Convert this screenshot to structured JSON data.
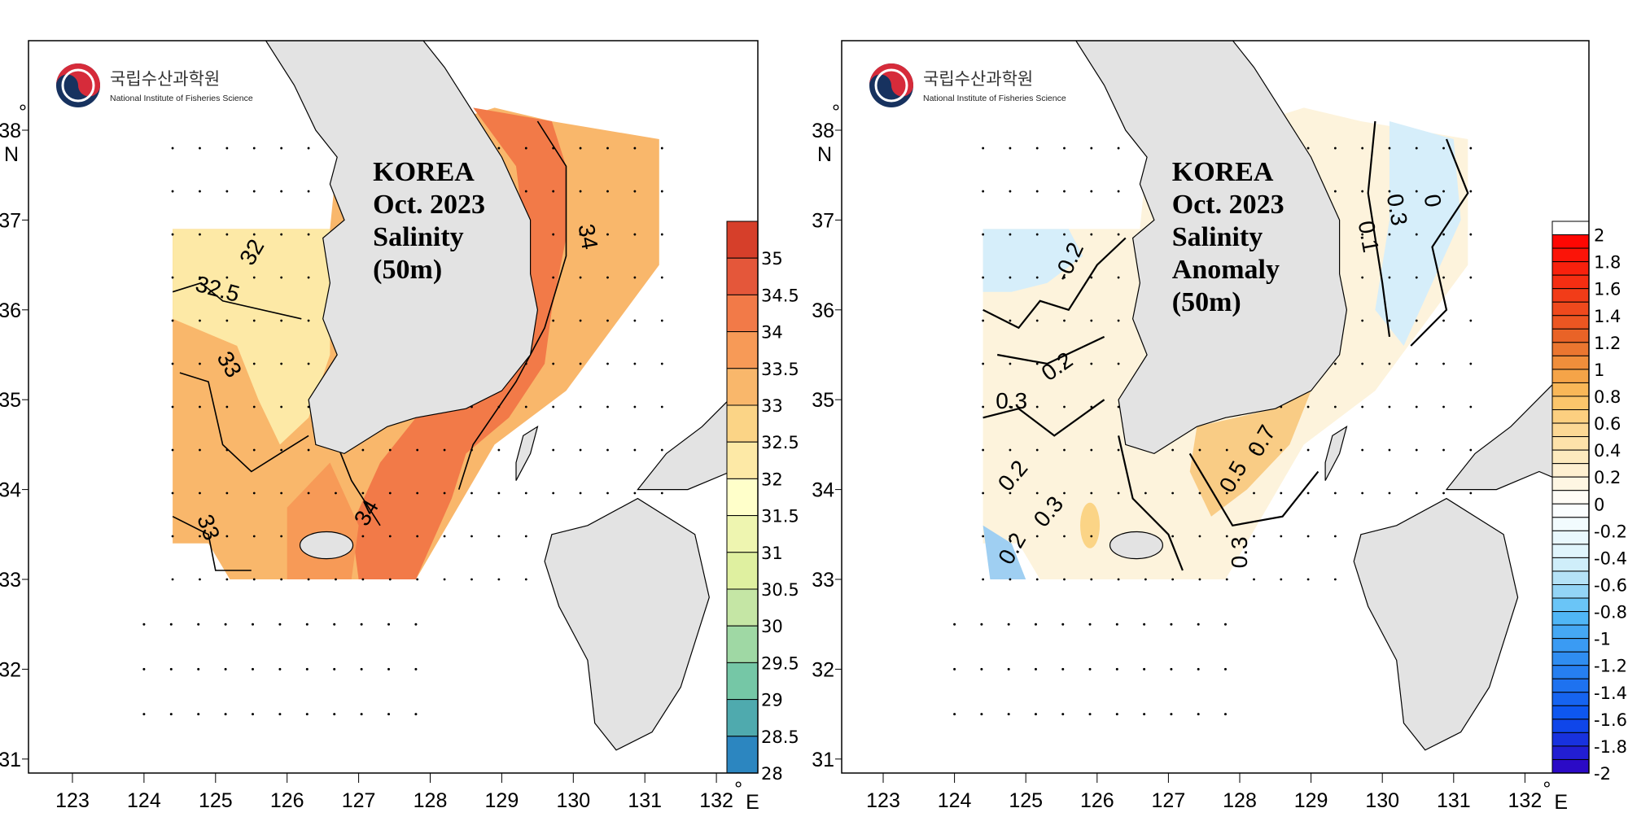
{
  "logo": {
    "korean": "국립수산과학원",
    "english": "National Institute of Fisheries Science"
  },
  "chart_data": [
    {
      "type": "heatmap",
      "subtype": "filled-contour map",
      "title_lines": [
        "KOREA",
        "Oct. 2023",
        "Salinity",
        "(50m)"
      ],
      "x_ticks": [
        "123",
        "124",
        "125",
        "126",
        "127",
        "128",
        "129",
        "130",
        "131",
        "132"
      ],
      "x_unit": "°",
      "x_axis_label": "E",
      "y_ticks": [
        "38",
        "37",
        "36",
        "35",
        "34",
        "33",
        "32",
        "31"
      ],
      "y_unit": "°",
      "y_axis_label": "N",
      "xlim": [
        122.4,
        132.6
      ],
      "ylim": [
        30.7,
        39.0
      ],
      "colorbar": {
        "labels": [
          "35",
          "34.5",
          "34",
          "33.5",
          "33",
          "32.5",
          "32",
          "31.5",
          "31",
          "30.5",
          "30",
          "29.5",
          "29",
          "28.5",
          "28"
        ],
        "colors": [
          "#d63f2a",
          "#e4573a",
          "#f27a48",
          "#f79a57",
          "#f9b76b",
          "#fbd486",
          "#fde9a6",
          "#ffffca",
          "#eef5b0",
          "#dff0a0",
          "#c5e6a5",
          "#9fd8a4",
          "#75c7a6",
          "#4faaae",
          "#2c86c0"
        ]
      },
      "contour_labels": [
        "32",
        "32.5",
        "33",
        "33",
        "34",
        "34"
      ],
      "colors": {
        "land": "#e3e3e3",
        "high": "#f27a48",
        "mid": "#f9b76b",
        "low": "#fde9a6"
      }
    },
    {
      "type": "heatmap",
      "subtype": "filled-contour map",
      "title_lines": [
        "KOREA",
        "Oct. 2023",
        "Salinity",
        "Anomaly",
        "(50m)"
      ],
      "x_ticks": [
        "123",
        "124",
        "125",
        "126",
        "127",
        "128",
        "129",
        "130",
        "131",
        "132"
      ],
      "x_unit": "°",
      "x_axis_label": "E",
      "y_ticks": [
        "38",
        "37",
        "36",
        "35",
        "34",
        "33",
        "32",
        "31"
      ],
      "y_unit": "°",
      "y_axis_label": "N",
      "xlim": [
        122.4,
        132.6
      ],
      "ylim": [
        30.7,
        39.0
      ],
      "colorbar": {
        "labels": [
          "2",
          "1.8",
          "1.6",
          "1.4",
          "1.2",
          "1",
          "0.8",
          "0.6",
          "0.4",
          "0.2",
          "0",
          "-0.2",
          "-0.4",
          "-0.6",
          "-0.8",
          "-1",
          "-1.2",
          "-1.4",
          "-1.6",
          "-1.8",
          "-2"
        ],
        "range": [
          -2,
          2
        ],
        "step": 0.1
      },
      "contour_labels": [
        "-0.2",
        "0.2",
        "0.3",
        "0.2",
        "0.3",
        "0.5",
        "0.7",
        "0.3",
        "0.3",
        "0.1",
        "0.2",
        "0"
      ],
      "colors": {
        "land": "#e3e3e3",
        "positive": "#f9cc85",
        "neutral": "#fdf3dc",
        "negative": "#d6eefa"
      }
    }
  ]
}
